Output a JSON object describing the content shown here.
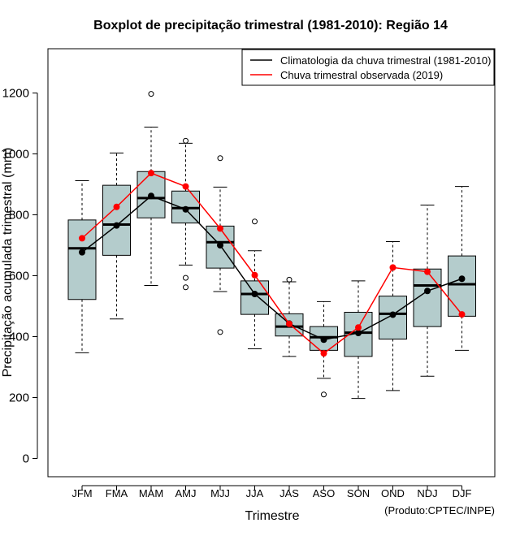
{
  "chart_data": {
    "type": "boxplot",
    "title": "Boxplot de precipitação trimestral (1981-2010): Região 14",
    "xlabel": "Trimestre",
    "ylabel": "Precipitação acumulada trimestral (mm)",
    "credit": "(Produto:CPTEC/INPE)",
    "ylim": [
      -60,
      1340
    ],
    "yticks": [
      0,
      200,
      400,
      600,
      800,
      1000,
      1200
    ],
    "categories": [
      "JFM",
      "FMA",
      "MAM",
      "AMJ",
      "MJJ",
      "JJA",
      "JAS",
      "ASO",
      "SON",
      "OND",
      "NDJ",
      "DJF"
    ],
    "boxes": [
      {
        "whisker_low": 347,
        "q1": 522,
        "median": 690,
        "q3": 783,
        "whisker_high": 912,
        "outliers": []
      },
      {
        "whisker_low": 458,
        "q1": 667,
        "median": 768,
        "q3": 897,
        "whisker_high": 1003,
        "outliers": []
      },
      {
        "whisker_low": 568,
        "q1": 790,
        "median": 855,
        "q3": 942,
        "whisker_high": 1088,
        "outliers": [
          1197
        ]
      },
      {
        "whisker_low": 635,
        "q1": 773,
        "median": 822,
        "q3": 878,
        "whisker_high": 1035,
        "outliers": [
          1043,
          593,
          562
        ]
      },
      {
        "whisker_low": 548,
        "q1": 625,
        "median": 710,
        "q3": 763,
        "whisker_high": 891,
        "outliers": [
          986,
          415
        ]
      },
      {
        "whisker_low": 360,
        "q1": 473,
        "median": 540,
        "q3": 583,
        "whisker_high": 682,
        "outliers": [
          778
        ]
      },
      {
        "whisker_low": 335,
        "q1": 402,
        "median": 433,
        "q3": 475,
        "whisker_high": 580,
        "outliers": [
          587
        ]
      },
      {
        "whisker_low": 263,
        "q1": 355,
        "median": 398,
        "q3": 433,
        "whisker_high": 515,
        "outliers": [
          210
        ]
      },
      {
        "whisker_low": 197,
        "q1": 335,
        "median": 413,
        "q3": 480,
        "whisker_high": 583,
        "outliers": []
      },
      {
        "whisker_low": 223,
        "q1": 392,
        "median": 475,
        "q3": 533,
        "whisker_high": 712,
        "outliers": []
      },
      {
        "whisker_low": 270,
        "q1": 433,
        "median": 568,
        "q3": 622,
        "whisker_high": 832,
        "outliers": []
      },
      {
        "whisker_low": 355,
        "q1": 467,
        "median": 572,
        "q3": 665,
        "whisker_high": 893,
        "outliers": []
      }
    ],
    "series": [
      {
        "name": "Climatologia da chuva trimestral (1981-2010)",
        "color": "#000000",
        "values": [
          677,
          765,
          862,
          818,
          700,
          540,
          443,
          390,
          412,
          472,
          550,
          590
        ]
      },
      {
        "name": "Chuva trimestral observada (2019)",
        "color": "#ff0000",
        "values": [
          723,
          826,
          937,
          893,
          755,
          602,
          442,
          345,
          430,
          627,
          613,
          473
        ]
      }
    ],
    "box_fill": "#b4cccc",
    "legend_position": "top-right"
  }
}
